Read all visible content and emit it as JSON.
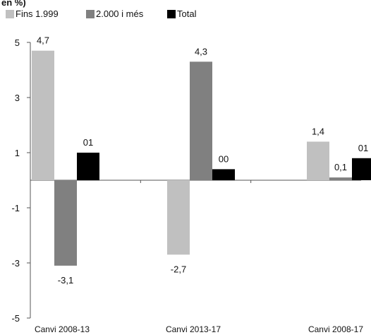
{
  "cut_title": "en %)",
  "chart_data": {
    "type": "bar",
    "categories": [
      "Canvi 2008-13",
      "Canvi 2013-17",
      "Canvi 2008-17"
    ],
    "series": [
      {
        "name": "Fins 1.999",
        "color": "#c0c0c0",
        "values": [
          4.7,
          -2.7,
          1.4
        ],
        "labels": [
          "4,7",
          "-2,7",
          "1,4"
        ]
      },
      {
        "name": "2.000 i més",
        "color": "#808080",
        "values": [
          -3.1,
          4.3,
          0.1
        ],
        "labels": [
          "-3,1",
          "4,3",
          "0,1"
        ]
      },
      {
        "name": "Total",
        "color": "#000000",
        "values": [
          1.0,
          0.4,
          0.8
        ],
        "labels": [
          "01",
          "00",
          "01"
        ]
      }
    ],
    "yticks": [
      5,
      3,
      1,
      -1,
      -3,
      -5
    ],
    "ytick_labels": [
      "5",
      "3",
      "1",
      "-1",
      "-3",
      "-5"
    ],
    "ylim": [
      -5,
      5
    ],
    "legend_position": "top-left",
    "grid": false
  }
}
